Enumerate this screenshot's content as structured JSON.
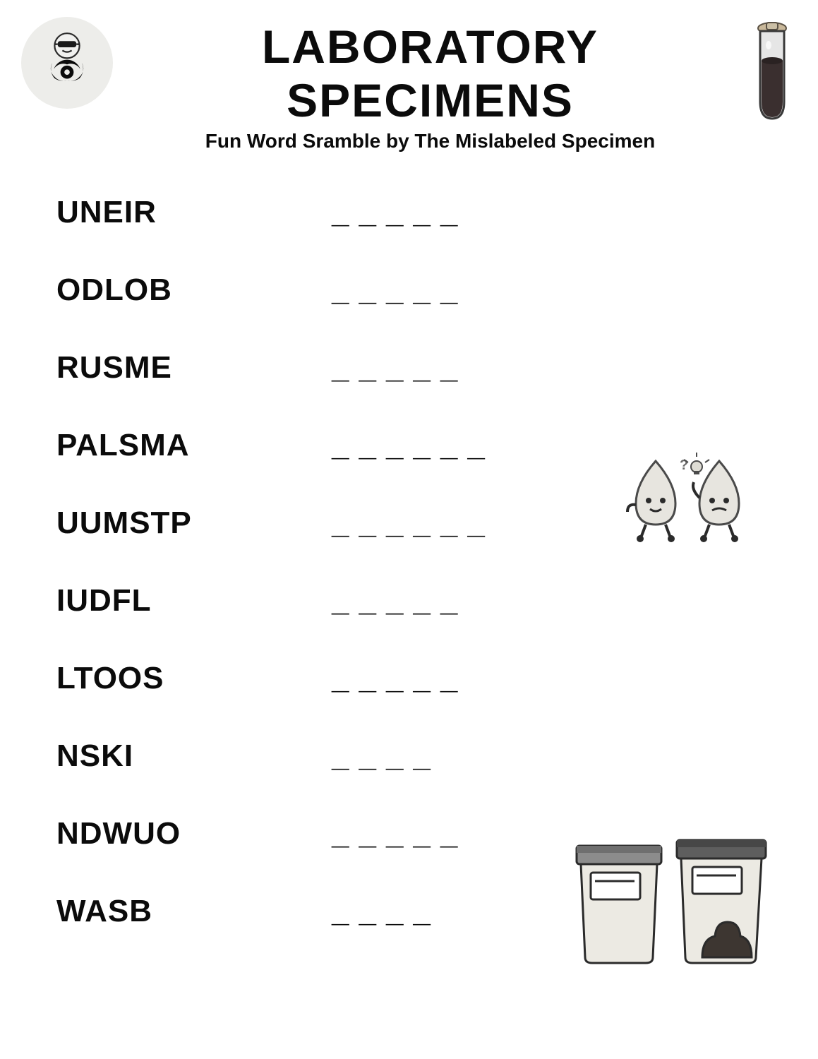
{
  "header": {
    "title": "LABORATORY SPECIMENS",
    "subtitle": "Fun Word Sramble by The Mislabeled Specimen"
  },
  "items": [
    {
      "scramble": "UNEIR",
      "len": 5
    },
    {
      "scramble": "ODLOB",
      "len": 5
    },
    {
      "scramble": "RUSME",
      "len": 5
    },
    {
      "scramble": "PALSMA",
      "len": 6
    },
    {
      "scramble": "UUMSTP",
      "len": 6
    },
    {
      "scramble": "IUDFL",
      "len": 5
    },
    {
      "scramble": "LTOOS",
      "len": 5
    },
    {
      "scramble": "NSKI",
      "len": 4
    },
    {
      "scramble": "NDWUO",
      "len": 5
    },
    {
      "scramble": "WASB",
      "len": 4
    }
  ],
  "style": {
    "text_color": "#0b0b0b",
    "background": "#ffffff",
    "badge_bg": "#ededea",
    "title_fontsize": 66,
    "subtitle_fontsize": 28,
    "row_fontsize": 44,
    "blank_char": "_",
    "blank_letter_spacing": 14,
    "row_gap": 60
  },
  "icons": {
    "biohazard": "biohazard-icon",
    "tube": "test-tube-icon",
    "drops": "water-drops-icon",
    "cups": "specimen-cups-icon"
  }
}
